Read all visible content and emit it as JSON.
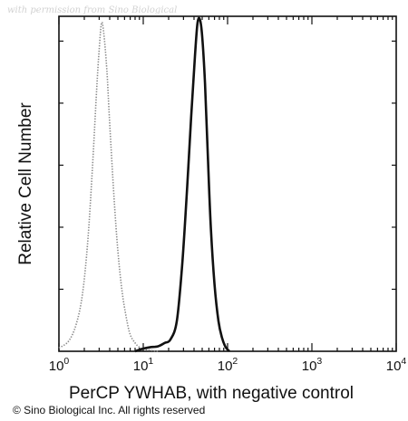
{
  "watermark": "with permission from Sino Biological",
  "copyright": "© Sino Biological Inc. All rights reserved",
  "chart_data": {
    "type": "histogram",
    "xlabel": "PerCP YWHAB, with negative control",
    "ylabel": "Relative Cell Number",
    "x_scale": "log",
    "xlim": [
      1,
      10000
    ],
    "ylim": [
      0,
      1.0
    ],
    "x_ticks": [
      1,
      10,
      100,
      1000,
      10000
    ],
    "x_tick_labels": [
      {
        "base": "10",
        "exp": "0"
      },
      {
        "base": "10",
        "exp": "1"
      },
      {
        "base": "10",
        "exp": "2"
      },
      {
        "base": "10",
        "exp": "3"
      },
      {
        "base": "10",
        "exp": "4"
      }
    ],
    "y_tick_labels_shown": false,
    "colors": {
      "axis": "#111111",
      "negative_control": "#8a8a8a",
      "sample": "#111111"
    },
    "series": [
      {
        "style": "dotted light gray",
        "points": [
          [
            1.0,
            0.01
          ],
          [
            1.3,
            0.03
          ],
          [
            1.6,
            0.08
          ],
          [
            1.9,
            0.17
          ],
          [
            2.2,
            0.33
          ],
          [
            2.5,
            0.55
          ],
          [
            2.8,
            0.78
          ],
          [
            3.0,
            0.9
          ],
          [
            3.2,
            0.98
          ],
          [
            3.4,
            0.95
          ],
          [
            3.7,
            0.84
          ],
          [
            4.0,
            0.68
          ],
          [
            4.5,
            0.46
          ],
          [
            5.0,
            0.3
          ],
          [
            5.6,
            0.18
          ],
          [
            6.3,
            0.1
          ],
          [
            7.0,
            0.05
          ],
          [
            8.0,
            0.025
          ],
          [
            9.0,
            0.012
          ],
          [
            10.0,
            0.006
          ],
          [
            12.0,
            0.003
          ],
          [
            15.0,
            0.0
          ]
        ]
      },
      {
        "style": "solid black",
        "points": [
          [
            8.0,
            0.0
          ],
          [
            10.0,
            0.008
          ],
          [
            12.0,
            0.012
          ],
          [
            15.0,
            0.015
          ],
          [
            18.0,
            0.025
          ],
          [
            21.0,
            0.035
          ],
          [
            25.0,
            0.09
          ],
          [
            29.0,
            0.26
          ],
          [
            33.0,
            0.48
          ],
          [
            37.0,
            0.7
          ],
          [
            41.0,
            0.88
          ],
          [
            44.0,
            0.98
          ],
          [
            47.0,
            0.99
          ],
          [
            50.0,
            0.94
          ],
          [
            54.0,
            0.8
          ],
          [
            58.0,
            0.6
          ],
          [
            63.0,
            0.38
          ],
          [
            70.0,
            0.2
          ],
          [
            78.0,
            0.09
          ],
          [
            86.0,
            0.04
          ],
          [
            95.0,
            0.012
          ],
          [
            105.0,
            0.0
          ]
        ]
      }
    ]
  }
}
